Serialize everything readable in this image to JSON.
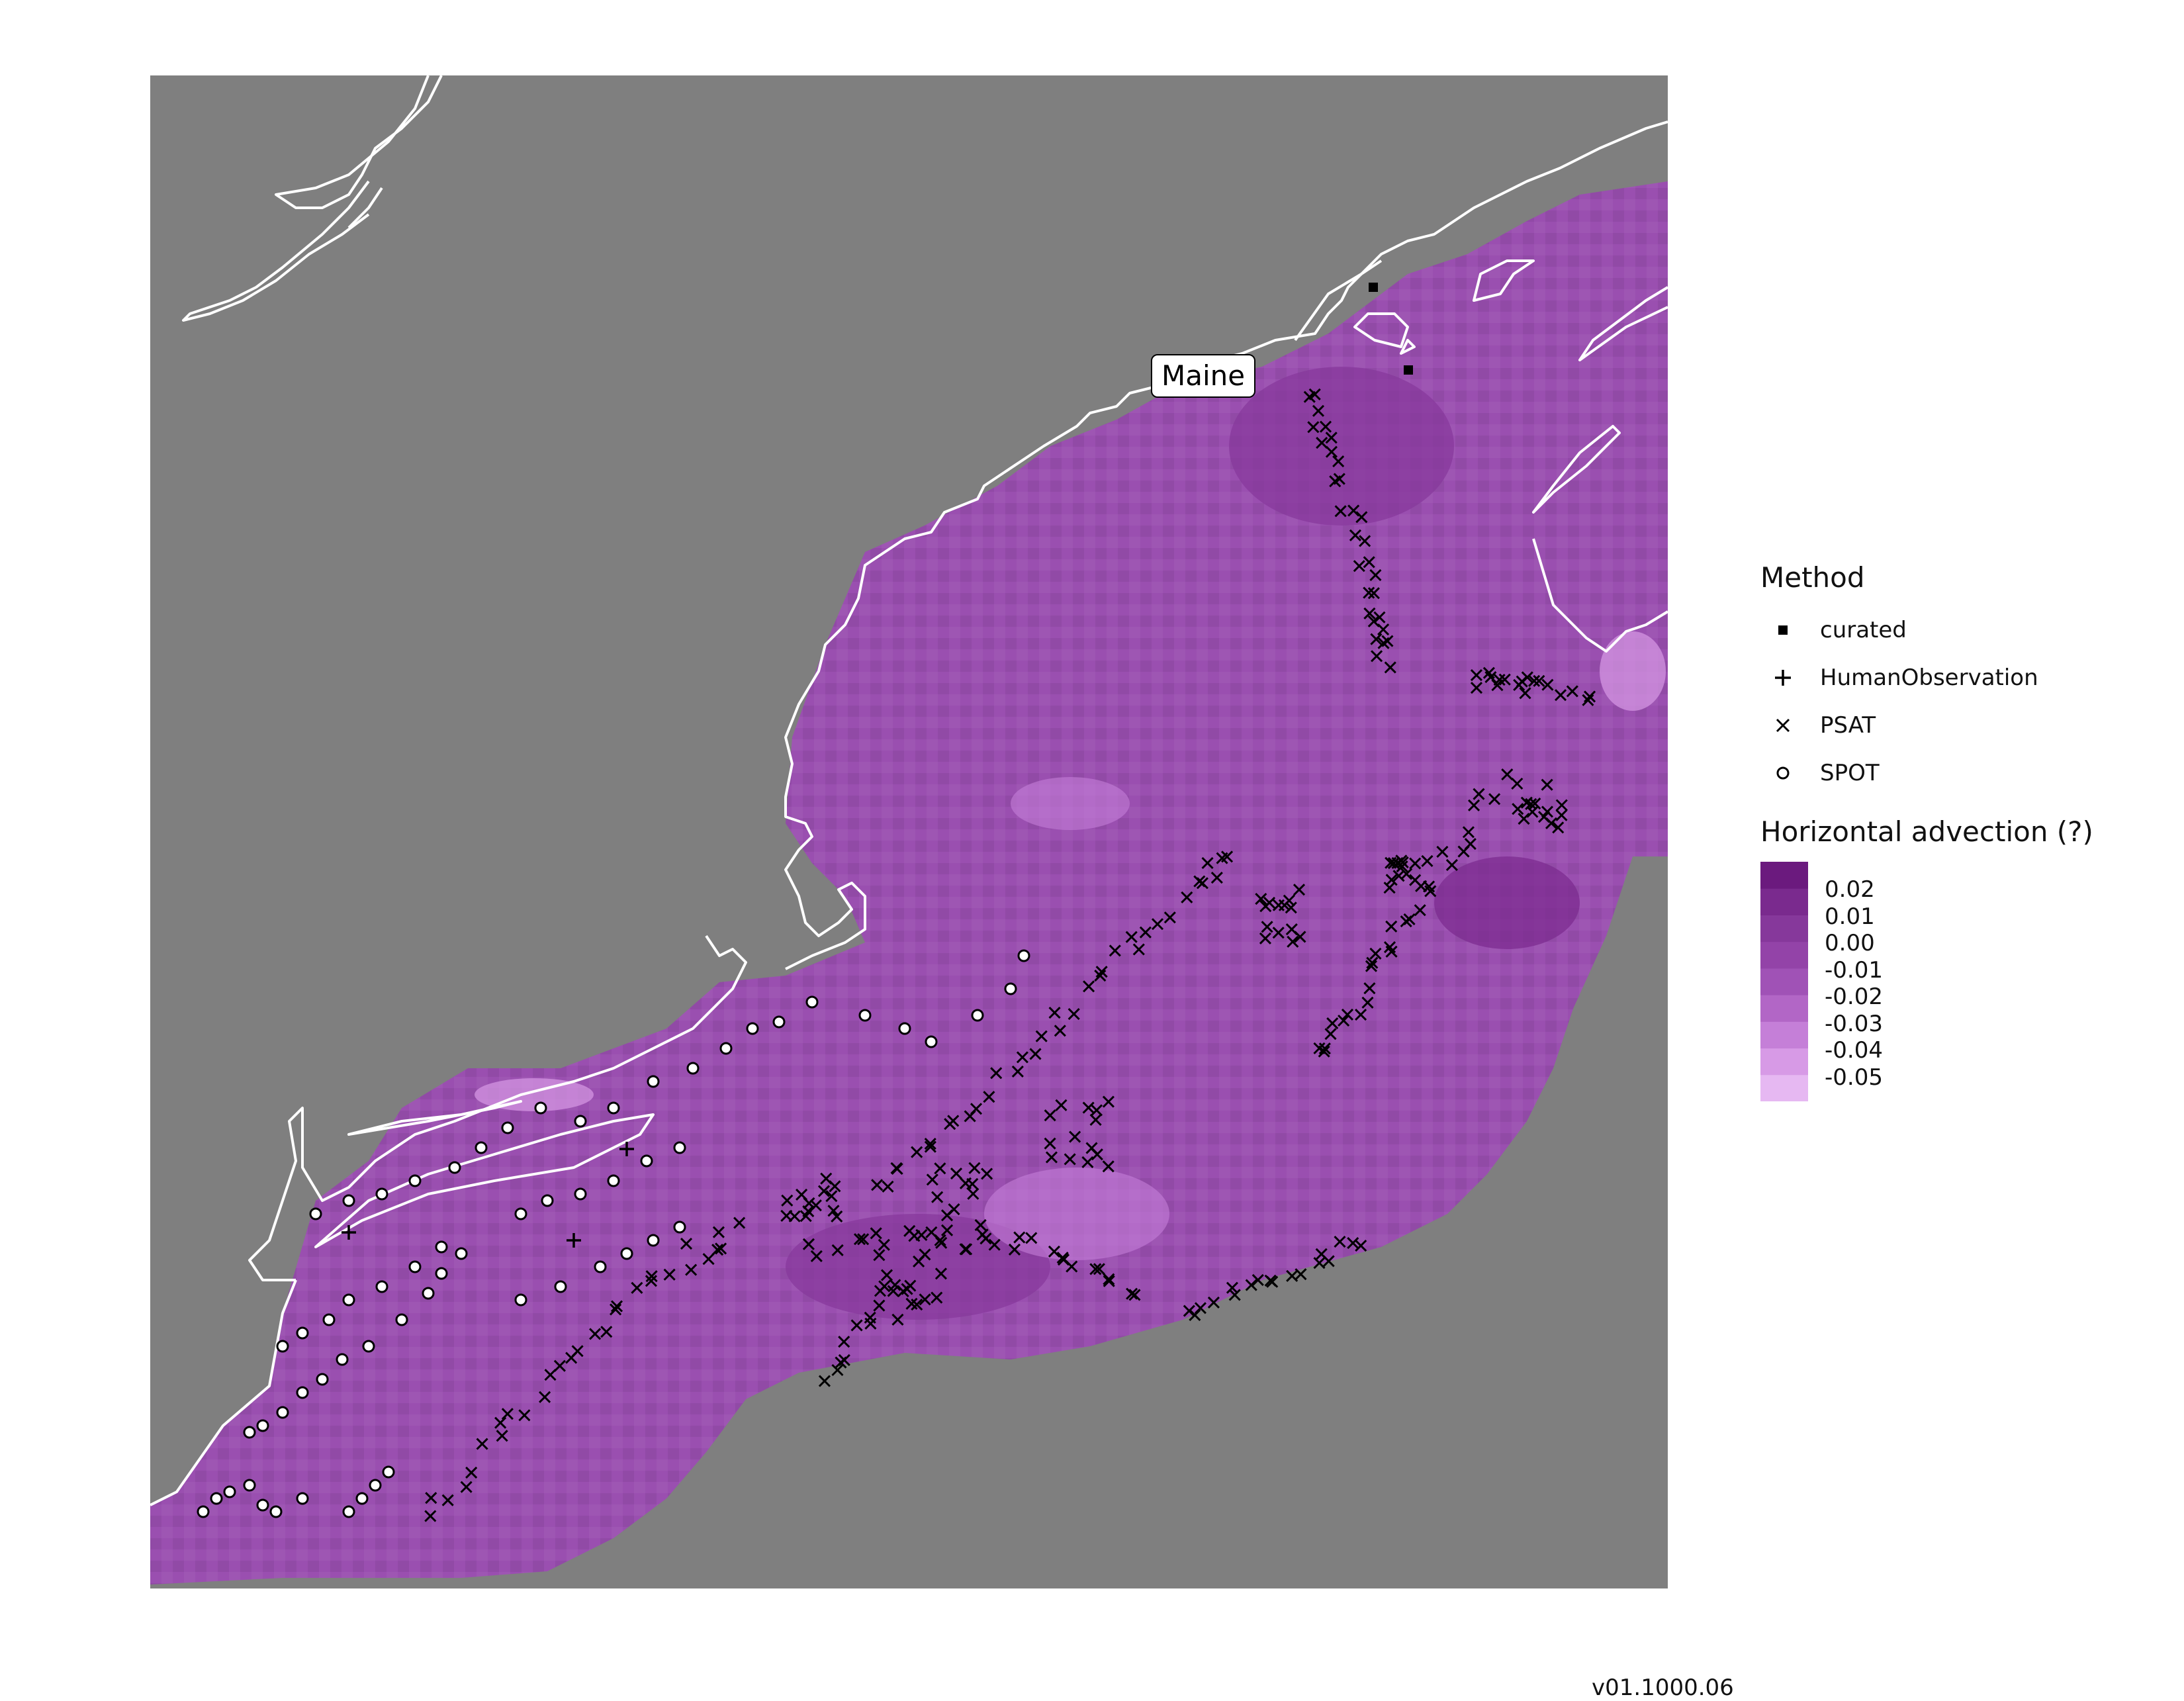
{
  "map": {
    "place_label": "Maine",
    "background_color": "#7f7f7f",
    "coastline_color": "#ffffff"
  },
  "legend": {
    "method_title": "Method",
    "methods": [
      {
        "label": "curated",
        "symbol": "filled-square-icon"
      },
      {
        "label": "HumanObservation",
        "symbol": "plus-icon"
      },
      {
        "label": "PSAT",
        "symbol": "x-cross-icon"
      },
      {
        "label": "SPOT",
        "symbol": "open-circle-icon"
      }
    ],
    "colorbar_title": "Horizontal advection (?)",
    "colorbar_ticks": [
      "0.02",
      "0.01",
      "0.00",
      "-0.01",
      "-0.02",
      "-0.03",
      "-0.04",
      "-0.05"
    ],
    "colorbar_colors": [
      "#e6b8f2",
      "#d79ae6",
      "#c57fd8",
      "#b266c6",
      "#a052b6",
      "#9343a8",
      "#86389b",
      "#7a2a8e",
      "#6b1a7e"
    ]
  },
  "caption": {
    "version": "v01.1000.06"
  }
}
